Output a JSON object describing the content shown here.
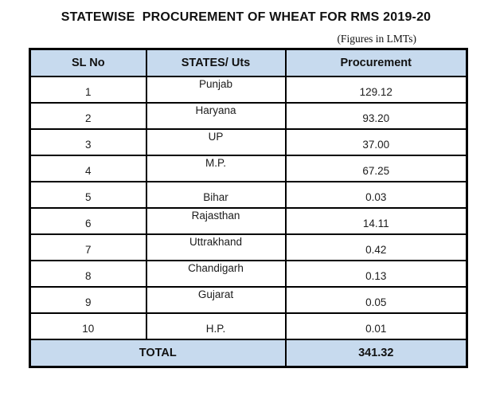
{
  "page": {
    "title": "STATEWISE  PROCUREMENT OF WHEAT FOR RMS 2019-20",
    "unit_note": "(Figures in LMTs)"
  },
  "table": {
    "headers": {
      "sl": "SL No",
      "state": "STATES/ Uts",
      "procurement": "Procurement"
    },
    "rows": [
      {
        "sl": "1",
        "state": "Punjab",
        "value": "129.12"
      },
      {
        "sl": "2",
        "state": "Haryana",
        "value": "93.20"
      },
      {
        "sl": "3",
        "state": "UP",
        "value": "37.00"
      },
      {
        "sl": "4",
        "state": "M.P.",
        "value": "67.25"
      },
      {
        "sl": "5",
        "state": "Bihar",
        "value": "0.03"
      },
      {
        "sl": "6",
        "state": "Rajasthan",
        "value": "14.11"
      },
      {
        "sl": "7",
        "state": "Uttrakhand",
        "value": "0.42"
      },
      {
        "sl": "8",
        "state": "Chandigarh",
        "value": "0.13"
      },
      {
        "sl": "9",
        "state": "Gujarat",
        "value": "0.05"
      },
      {
        "sl": "10",
        "state": "H.P.",
        "value": "0.01"
      }
    ],
    "total": {
      "label": "TOTAL",
      "value": "341.32"
    }
  },
  "colors": {
    "header_bg": "#c7daee",
    "border": "#000000",
    "text": "#1c1c1c"
  }
}
